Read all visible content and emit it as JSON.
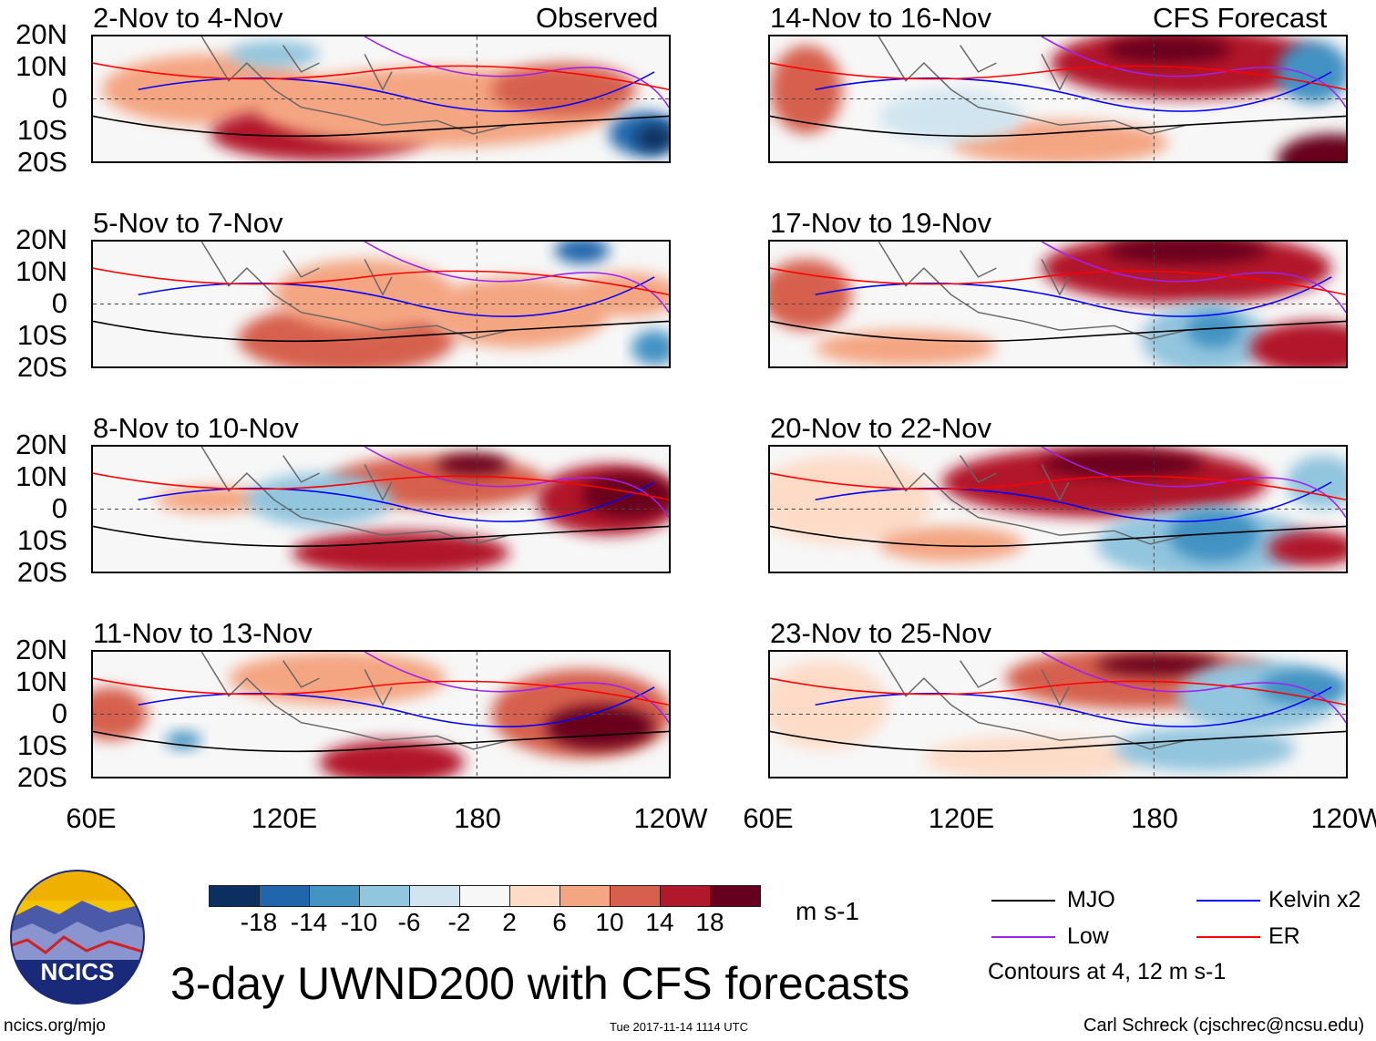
{
  "figure": {
    "title": "3-day UWND200 with CFS forecasts",
    "left_header": "Observed",
    "right_header": "CFS Forecast",
    "panels_left": [
      "2-Nov to 4-Nov",
      "5-Nov to 7-Nov",
      "8-Nov to 10-Nov",
      "11-Nov to 13-Nov"
    ],
    "panels_right": [
      "14-Nov to 16-Nov",
      "17-Nov to 19-Nov",
      "20-Nov to 22-Nov",
      "23-Nov to 25-Nov"
    ],
    "y_ticks": [
      "20N",
      "10N",
      "0",
      "10S",
      "20S"
    ],
    "x_ticks": [
      "60E",
      "120E",
      "180",
      "120W"
    ]
  },
  "colorbar": {
    "labels": [
      "-18",
      "-14",
      "-10",
      "-6",
      "-2",
      "2",
      "6",
      "10",
      "14",
      "18"
    ],
    "colors": [
      "#0b305f",
      "#2166ac",
      "#4393c3",
      "#92c5de",
      "#d1e5f0",
      "#f7f7f7",
      "#fddbc7",
      "#f4a582",
      "#d6604d",
      "#b2182b",
      "#67001f"
    ],
    "units": "m s-1"
  },
  "legend": {
    "items": [
      {
        "label": "MJO",
        "color": "#000000"
      },
      {
        "label": "Kelvin x2",
        "color": "#0000ff"
      },
      {
        "label": "Low",
        "color": "#a020f0"
      },
      {
        "label": "ER",
        "color": "#ff0000"
      }
    ],
    "note": "Contours at 4, 12 m s-1"
  },
  "footer": {
    "logo_text": "NCICS",
    "url": "ncics.org/mjo",
    "timestamp": "Tue 2017-11-14 1114 UTC",
    "credit": "Carl Schreck (cjschrec@ncsu.edu)"
  }
}
